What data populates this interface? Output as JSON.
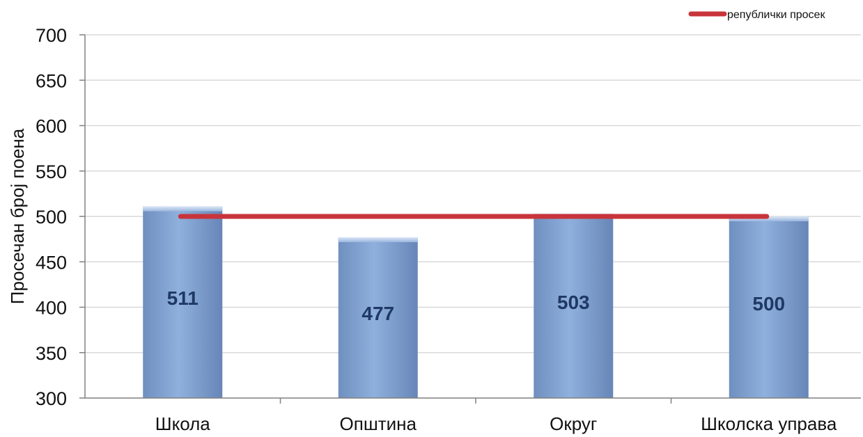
{
  "chart_data": {
    "type": "bar",
    "categories": [
      "Школа",
      "Општина",
      "Округ",
      "Школска управа"
    ],
    "values": [
      511,
      477,
      503,
      500
    ],
    "data_labels": [
      "511",
      "477",
      "503",
      "500"
    ],
    "ylabel": "Просечан број поена",
    "ylim": [
      300,
      700
    ],
    "yticks": [
      300,
      350,
      400,
      450,
      500,
      550,
      600,
      650,
      700
    ],
    "grid": true,
    "reference_line": {
      "name": "републички просек",
      "value": 500
    },
    "legend_position": "top-right",
    "colors": {
      "bar": "#7f9fcd",
      "bar_dark": "#5c7fb3",
      "line": "#c8343b",
      "grid": "#d9d9d9",
      "axis": "#808080"
    }
  }
}
